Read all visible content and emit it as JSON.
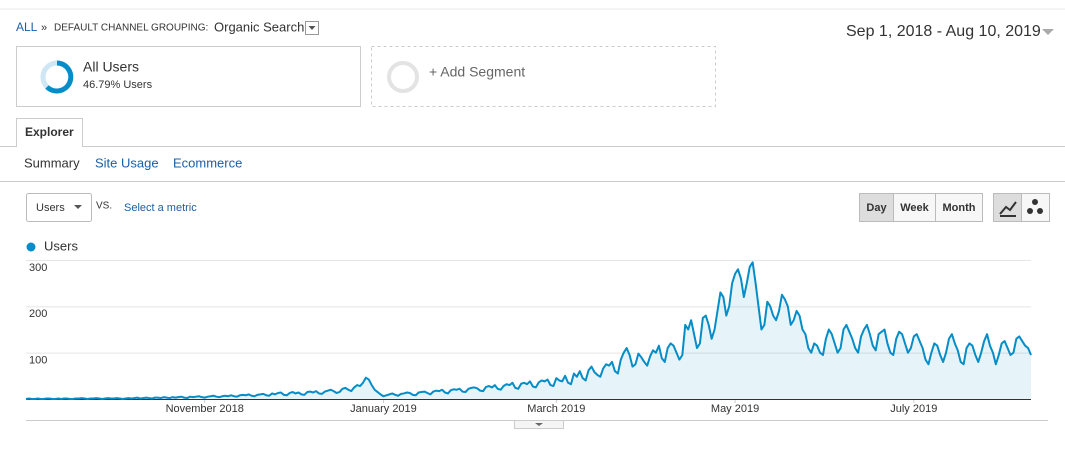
{
  "header": {
    "breadcrumb_root": "ALL",
    "separator": "»",
    "dimension": "DEFAULT CHANNEL GROUPING:",
    "dimension_value": "Organic Search",
    "date_range": "Sep 1, 2018 - Aug 10, 2019"
  },
  "segments": {
    "active_name": "All Users",
    "active_detail": "46.79% Users",
    "add": "+ Add Segment"
  },
  "tabs": {
    "main": "Explorer",
    "sub": [
      "Summary",
      "Site Usage",
      "Ecommerce"
    ]
  },
  "controls": {
    "metric": "Users",
    "vs": "VS.",
    "select_metric": "Select a metric",
    "granularity": [
      "Day",
      "Week",
      "Month"
    ]
  },
  "chart_data": {
    "type": "line",
    "fill": true,
    "grid": true,
    "series": [
      {
        "name": "Users",
        "color": "#058dc7",
        "values": [
          0,
          1,
          0,
          0,
          1,
          0,
          0,
          1,
          1,
          0,
          0,
          1,
          0,
          1,
          1,
          0,
          0,
          1,
          1,
          2,
          1,
          0,
          1,
          1,
          2,
          1,
          0,
          1,
          2,
          1,
          1,
          2,
          1,
          0,
          1,
          2,
          1,
          2,
          3,
          1,
          2,
          3,
          2,
          1,
          3,
          3,
          2,
          4,
          3,
          2,
          4,
          3,
          4,
          5,
          3,
          2,
          5,
          4,
          5,
          6,
          4,
          3,
          5,
          6,
          7,
          5,
          4,
          6,
          7,
          6,
          8,
          6,
          5,
          8,
          9,
          8,
          10,
          7,
          6,
          9,
          10,
          11,
          8,
          7,
          12,
          10,
          13,
          14,
          9,
          8,
          13,
          15,
          12,
          14,
          10,
          9,
          15,
          16,
          14,
          17,
          12,
          11,
          16,
          18,
          20,
          17,
          13,
          15,
          22,
          24,
          20,
          17,
          25,
          30,
          28,
          35,
          46,
          42,
          30,
          20,
          15,
          10,
          6,
          8,
          10,
          12,
          9,
          7,
          11,
          12,
          14,
          13,
          9,
          8,
          14,
          15,
          16,
          13,
          10,
          16,
          18,
          17,
          20,
          14,
          12,
          19,
          21,
          20,
          22,
          16,
          15,
          22,
          24,
          25,
          23,
          18,
          17,
          26,
          28,
          25,
          30,
          22,
          20,
          28,
          32,
          30,
          35,
          24,
          22,
          33,
          35,
          32,
          38,
          27,
          25,
          36,
          40,
          38,
          42,
          30,
          28,
          45,
          40,
          38,
          50,
          35,
          32,
          55,
          48,
          60,
          45,
          40,
          62,
          70,
          58,
          52,
          48,
          66,
          75,
          72,
          80,
          60,
          55,
          85,
          100,
          110,
          95,
          70,
          75,
          98,
          90,
          80,
          72,
          92,
          105,
          100,
          115,
          88,
          80,
          110,
          120,
          115,
          100,
          85,
          95,
          160,
          150,
          170,
          140,
          110,
          120,
          175,
          180,
          160,
          130,
          150,
          190,
          230,
          220,
          180,
          200,
          250,
          270,
          280,
          260,
          220,
          250,
          285,
          295,
          250,
          200,
          150,
          160,
          210,
          200,
          180,
          170,
          190,
          225,
          215,
          200,
          160,
          170,
          190,
          180,
          150,
          140,
          110,
          100,
          120,
          115,
          100,
          95,
          130,
          150,
          140,
          120,
          100,
          110,
          150,
          160,
          145,
          130,
          110,
          100,
          135,
          150,
          160,
          140,
          115,
          105,
          140,
          145,
          150,
          120,
          100,
          95,
          130,
          145,
          140,
          120,
          100,
          110,
          135,
          140,
          125,
          110,
          85,
          75,
          100,
          120,
          115,
          95,
          80,
          100,
          130,
          140,
          120,
          105,
          80,
          75,
          110,
          120,
          115,
          95,
          80,
          100,
          125,
          140,
          115,
          100,
          75,
          95,
          120,
          125,
          110,
          95,
          100,
          130,
          135,
          125,
          115,
          110,
          95
        ]
      }
    ],
    "ylim": [
      0,
      300
    ],
    "yticks": [
      100,
      200,
      300
    ],
    "xlim": [
      0,
      343
    ],
    "xticks": [
      {
        "value": 61,
        "label": "November 2018"
      },
      {
        "value": 122,
        "label": "January 2019"
      },
      {
        "value": 181,
        "label": "March 2019"
      },
      {
        "value": 242,
        "label": "May 2019"
      },
      {
        "value": 303,
        "label": "July 2019"
      }
    ]
  }
}
